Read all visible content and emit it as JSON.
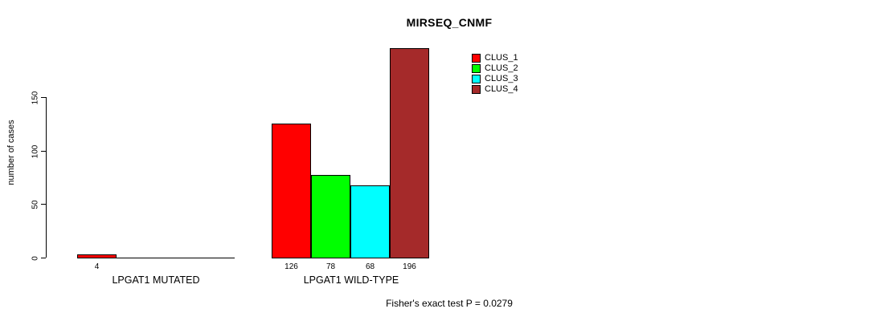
{
  "chart_data": {
    "type": "bar",
    "title": "MIRSEQ_CNMF",
    "xlabel": "",
    "ylabel": "number of cases",
    "yticks": [
      0,
      50,
      100,
      150
    ],
    "ylim": [
      0,
      200
    ],
    "grid": false,
    "legend_position": "top-right",
    "series_names": [
      "CLUS_1",
      "CLUS_2",
      "CLUS_3",
      "CLUS_4"
    ],
    "colors": [
      "#FF0000",
      "#00FF00",
      "#00FFFF",
      "#A52A2A"
    ],
    "groups": [
      {
        "label": "LPGAT1 MUTATED",
        "values": [
          4,
          0,
          0,
          0
        ],
        "value_labels": [
          "4",
          "",
          "",
          ""
        ]
      },
      {
        "label": "LPGAT1 WILD-TYPE",
        "values": [
          126,
          78,
          68,
          196
        ],
        "value_labels": [
          "126",
          "78",
          "68",
          "196"
        ]
      }
    ],
    "annotation": "Fisher's exact test P = 0.0279"
  }
}
